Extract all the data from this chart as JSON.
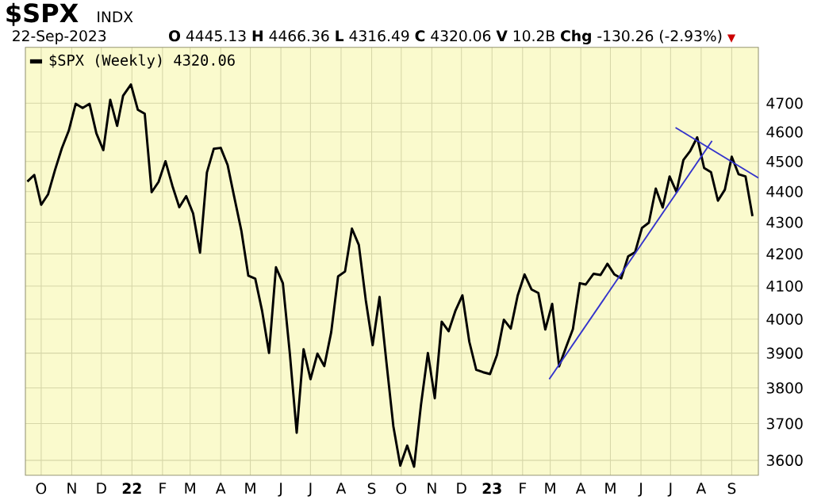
{
  "chart_data": {
    "type": "line",
    "title": "$SPX",
    "annotations": [
      "INDX",
      "22-Sep-2023",
      "**O** 4445.13 **H** 4466.36 **L** 4316.49 **C** 4320.06 **V** 10.2B **Chg** -130.26 (-2.93%)",
      "▼"
    ],
    "log": true,
    "grid": true,
    "legend": "top left",
    "xlim": [
      "2021-09-15",
      "2023-09-28"
    ],
    "ylim": [
      3560,
      4900
    ],
    "xticks": [
      {
        "value": "2021-10-01",
        "label": "O"
      },
      {
        "value": "2021-11-01",
        "label": "N"
      },
      {
        "value": "2021-12-01",
        "label": "D"
      },
      {
        "value": "2022-01-01",
        "label": "**22**"
      },
      {
        "value": "2022-02-01",
        "label": "F"
      },
      {
        "value": "2022-03-01",
        "label": "M"
      },
      {
        "value": "2022-04-01",
        "label": "A"
      },
      {
        "value": "2022-05-01",
        "label": "M"
      },
      {
        "value": "2022-06-01",
        "label": "J"
      },
      {
        "value": "2022-07-01",
        "label": "J"
      },
      {
        "value": "2022-08-01",
        "label": "A"
      },
      {
        "value": "2022-09-01",
        "label": "S"
      },
      {
        "value": "2022-10-01",
        "label": "O"
      },
      {
        "value": "2022-11-01",
        "label": "N"
      },
      {
        "value": "2022-12-01",
        "label": "D"
      },
      {
        "value": "2023-01-01",
        "label": "**23**"
      },
      {
        "value": "2023-02-01",
        "label": "F"
      },
      {
        "value": "2023-03-01",
        "label": "M"
      },
      {
        "value": "2023-04-01",
        "label": "A"
      },
      {
        "value": "2023-05-01",
        "label": "M"
      },
      {
        "value": "2023-06-01",
        "label": "J"
      },
      {
        "value": "2023-07-01",
        "label": "J"
      },
      {
        "value": "2023-08-01",
        "label": "A"
      },
      {
        "value": "2023-09-01",
        "label": "S"
      }
    ],
    "yticks": [
      3600,
      3700,
      3800,
      3900,
      4000,
      4100,
      4200,
      4300,
      4400,
      4500,
      4600,
      4700
    ],
    "series": [
      {
        "name": "$SPX (Weekly) 4320.06",
        "color": "#000000",
        "x": [
          "2021-09-17",
          "2021-09-24",
          "2021-10-01",
          "2021-10-08",
          "2021-10-15",
          "2021-10-22",
          "2021-10-29",
          "2021-11-05",
          "2021-11-12",
          "2021-11-19",
          "2021-11-26",
          "2021-12-03",
          "2021-12-10",
          "2021-12-17",
          "2021-12-23",
          "2021-12-31",
          "2022-01-07",
          "2022-01-14",
          "2022-01-21",
          "2022-01-28",
          "2022-02-04",
          "2022-02-11",
          "2022-02-18",
          "2022-02-25",
          "2022-03-04",
          "2022-03-11",
          "2022-03-18",
          "2022-03-25",
          "2022-04-01",
          "2022-04-08",
          "2022-04-14",
          "2022-04-22",
          "2022-04-29",
          "2022-05-06",
          "2022-05-13",
          "2022-05-20",
          "2022-05-27",
          "2022-06-03",
          "2022-06-10",
          "2022-06-17",
          "2022-06-24",
          "2022-07-01",
          "2022-07-08",
          "2022-07-15",
          "2022-07-22",
          "2022-07-29",
          "2022-08-05",
          "2022-08-12",
          "2022-08-19",
          "2022-08-26",
          "2022-09-02",
          "2022-09-09",
          "2022-09-16",
          "2022-09-23",
          "2022-09-30",
          "2022-10-07",
          "2022-10-14",
          "2022-10-21",
          "2022-10-28",
          "2022-11-04",
          "2022-11-11",
          "2022-11-18",
          "2022-11-25",
          "2022-12-02",
          "2022-12-09",
          "2022-12-16",
          "2022-12-23",
          "2022-12-30",
          "2023-01-06",
          "2023-01-13",
          "2023-01-20",
          "2023-01-27",
          "2023-02-03",
          "2023-02-10",
          "2023-02-17",
          "2023-02-24",
          "2023-03-03",
          "2023-03-10",
          "2023-03-17",
          "2023-03-24",
          "2023-03-31",
          "2023-04-06",
          "2023-04-14",
          "2023-04-21",
          "2023-04-28",
          "2023-05-05",
          "2023-05-12",
          "2023-05-19",
          "2023-05-26",
          "2023-06-02",
          "2023-06-09",
          "2023-06-16",
          "2023-06-23",
          "2023-06-30",
          "2023-07-07",
          "2023-07-14",
          "2023-07-21",
          "2023-07-28",
          "2023-08-04",
          "2023-08-11",
          "2023-08-18",
          "2023-08-25",
          "2023-09-01",
          "2023-09-08",
          "2023-09-15",
          "2023-09-22"
        ],
        "values": [
          4433,
          4455,
          4357,
          4391,
          4471,
          4545,
          4605,
          4698,
          4683,
          4698,
          4595,
          4538,
          4712,
          4621,
          4726,
          4766,
          4677,
          4663,
          4398,
          4432,
          4501,
          4419,
          4349,
          4385,
          4329,
          4204,
          4463,
          4543,
          4546,
          4488,
          4393,
          4272,
          4132,
          4123,
          4024,
          3901,
          4158,
          4109,
          3901,
          3675,
          3912,
          3825,
          3899,
          3863,
          3962,
          4130,
          4145,
          4280,
          4228,
          4058,
          3924,
          4067,
          3873,
          3693,
          3586,
          3640,
          3583,
          3753,
          3901,
          3771,
          3993,
          3965,
          4026,
          4072,
          3934,
          3852,
          3845,
          3840,
          3895,
          3999,
          3973,
          4071,
          4136,
          4090,
          4079,
          3970,
          4046,
          3862,
          3917,
          3971,
          4109,
          4105,
          4138,
          4134,
          4169,
          4136,
          4124,
          4192,
          4205,
          4282,
          4299,
          4410,
          4348,
          4450,
          4399,
          4505,
          4536,
          4582,
          4478,
          4464,
          4370,
          4406,
          4516,
          4457,
          4450,
          4320
        ]
      },
      {
        "color": "#3333cc",
        "x": [
          "2023-02-28",
          "2023-08-12"
        ],
        "values": [
          3825,
          4570
        ]
      },
      {
        "color": "#3333cc",
        "x": [
          "2023-07-06",
          "2023-09-28"
        ],
        "values": [
          4615,
          4445
        ]
      }
    ]
  }
}
